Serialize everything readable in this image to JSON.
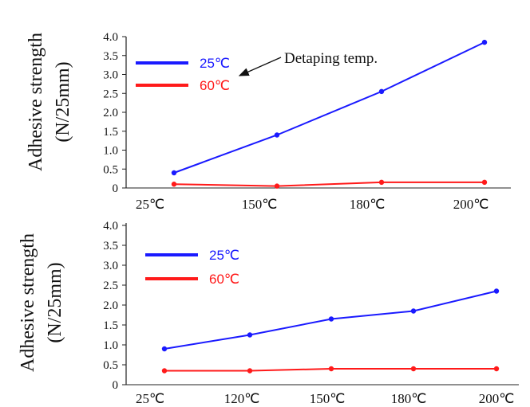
{
  "chart_data": [
    {
      "type": "line",
      "ylabel_line1": "Adhesive strength",
      "ylabel_line2": "(N/25mm)",
      "ylim": [
        0,
        4.0
      ],
      "yticks": [
        "0",
        "0.5",
        "1.0",
        "1.5",
        "2.0",
        "2.5",
        "3.0",
        "3.5",
        "4.0"
      ],
      "categories": [
        "25℃",
        "150℃",
        "180℃",
        "200℃"
      ],
      "series": [
        {
          "name": "25℃",
          "color": "#1a1aff",
          "values": [
            0.4,
            1.4,
            2.55,
            3.85
          ]
        },
        {
          "name": "60℃",
          "color": "#ff1a1a",
          "values": [
            0.1,
            0.05,
            0.15,
            0.15
          ]
        }
      ],
      "annotation": "Detaping temp.",
      "legend_position": "top-left",
      "grid": false
    },
    {
      "type": "line",
      "ylabel_line1": "Adhesive strength",
      "ylabel_line2": "(N/25mm)",
      "ylim": [
        0,
        4.0
      ],
      "yticks": [
        "0",
        "0.5",
        "1.0",
        "1.5",
        "2.0",
        "2.5",
        "3.0",
        "3.5",
        "4.0"
      ],
      "categories": [
        "25℃",
        "120℃",
        "150℃",
        "180℃",
        "200℃"
      ],
      "series": [
        {
          "name": "25℃",
          "color": "#1a1aff",
          "values": [
            0.9,
            1.25,
            1.65,
            1.85,
            2.35
          ]
        },
        {
          "name": "60℃",
          "color": "#ff1a1a",
          "values": [
            0.35,
            0.35,
            0.4,
            0.4,
            0.4
          ]
        }
      ],
      "legend_position": "top-left",
      "grid": false
    }
  ]
}
